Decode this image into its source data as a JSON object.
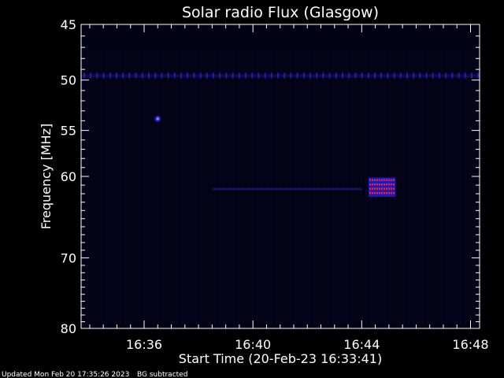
{
  "chart_data": {
    "type": "heatmap",
    "title": "Solar radio Flux (Glasgow)",
    "xlabel": "Start Time (20-Feb-23 16:33:41)",
    "ylabel": "Frequency [MHz]",
    "x_range": [
      "16:33:41",
      "16:48:20"
    ],
    "y_range": [
      45,
      80
    ],
    "y_ticks": [
      {
        "value": 45,
        "label": "45"
      },
      {
        "value": 50,
        "label": "50"
      },
      {
        "value": 55,
        "label": "55"
      },
      {
        "value": 60,
        "label": "60"
      },
      {
        "value": 70,
        "label": "70"
      },
      {
        "value": 80,
        "label": "80"
      }
    ],
    "x_ticks": [
      {
        "value": "16:36",
        "label": "16:36"
      },
      {
        "value": "16:40",
        "label": "16:40"
      },
      {
        "value": "16:44",
        "label": "16:44"
      },
      {
        "value": "16:48",
        "label": "16:48"
      }
    ],
    "background_color": "#020214",
    "band_color": "#3030ff",
    "burst_colors": [
      "#ff2020",
      "#2020ff"
    ],
    "features": [
      {
        "name": "interference-band",
        "freq_mhz": 49.6,
        "t_start": "16:33:41",
        "t_end": "16:48:20",
        "intensity": 0.6
      },
      {
        "name": "spot",
        "freq_mhz": 53.8,
        "time": "16:36:30",
        "intensity": 0.7
      },
      {
        "name": "faint-band",
        "freq_mhz": 61.5,
        "t_start": "16:38:30",
        "t_end": "16:44:00",
        "intensity": 0.3
      },
      {
        "name": "burst",
        "freq_min_mhz": 60.4,
        "freq_max_mhz": 61.9,
        "t_start": "16:44:15",
        "t_end": "16:45:15",
        "intensity": 1.0
      }
    ]
  },
  "footer": {
    "updated": "Updated Mon Feb 20 17:35:26 2023",
    "bg_note": "BG subtracted"
  }
}
